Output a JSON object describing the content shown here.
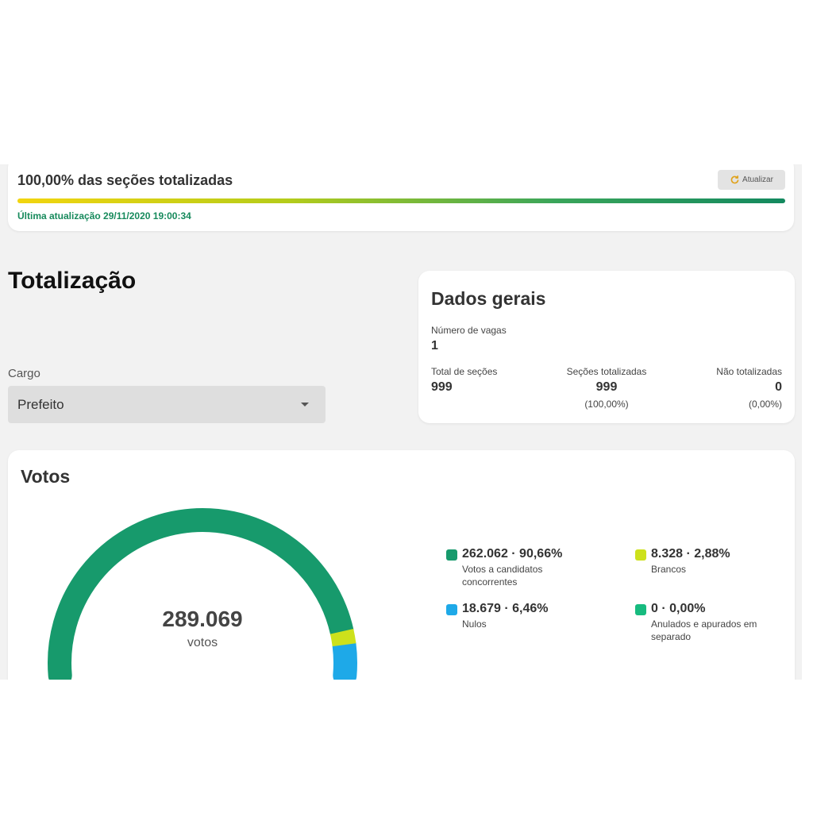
{
  "progress": {
    "title": "100,00% das seções totalizadas",
    "percent": 100,
    "refresh_label": "Atualizar",
    "refresh_icon": "refresh-icon",
    "last_update": "Última atualização 29/11/2020 19:00:34"
  },
  "page": {
    "title": "Totalização"
  },
  "cargo": {
    "label": "Cargo",
    "value": "Prefeito"
  },
  "dados": {
    "title": "Dados gerais",
    "vagas_label": "Número de vagas",
    "vagas_value": "1",
    "total_label": "Total de seções",
    "total_value": "999",
    "tot_label": "Seções totalizadas",
    "tot_value": "999",
    "tot_pct": "(100,00%)",
    "nao_label": "Não totalizadas",
    "nao_value": "0",
    "nao_pct": "(0,00%)"
  },
  "votos": {
    "title": "Votos",
    "total": "289.069",
    "total_unit": "votos",
    "segments": [
      {
        "name": "candidatos",
        "fraction": 0.9066,
        "color": "#179a6c"
      },
      {
        "name": "brancos",
        "fraction": 0.0288,
        "color": "#cde11c"
      },
      {
        "name": "nulos",
        "fraction": 0.0646,
        "color": "#1ea9e8"
      }
    ],
    "legend": [
      {
        "value": "262.062 · 90,66%",
        "desc": "Votos a candidatos concorrentes",
        "color": "#179a6c"
      },
      {
        "value": "8.328 · 2,88%",
        "desc": "Brancos",
        "color": "#cde11c"
      },
      {
        "value": "18.679 · 6,46%",
        "desc": "Nulos",
        "color": "#1ea9e8"
      },
      {
        "value": "0 · 0,00%",
        "desc": "Anulados e apurados em separado",
        "color": "#17bb7f"
      }
    ]
  }
}
